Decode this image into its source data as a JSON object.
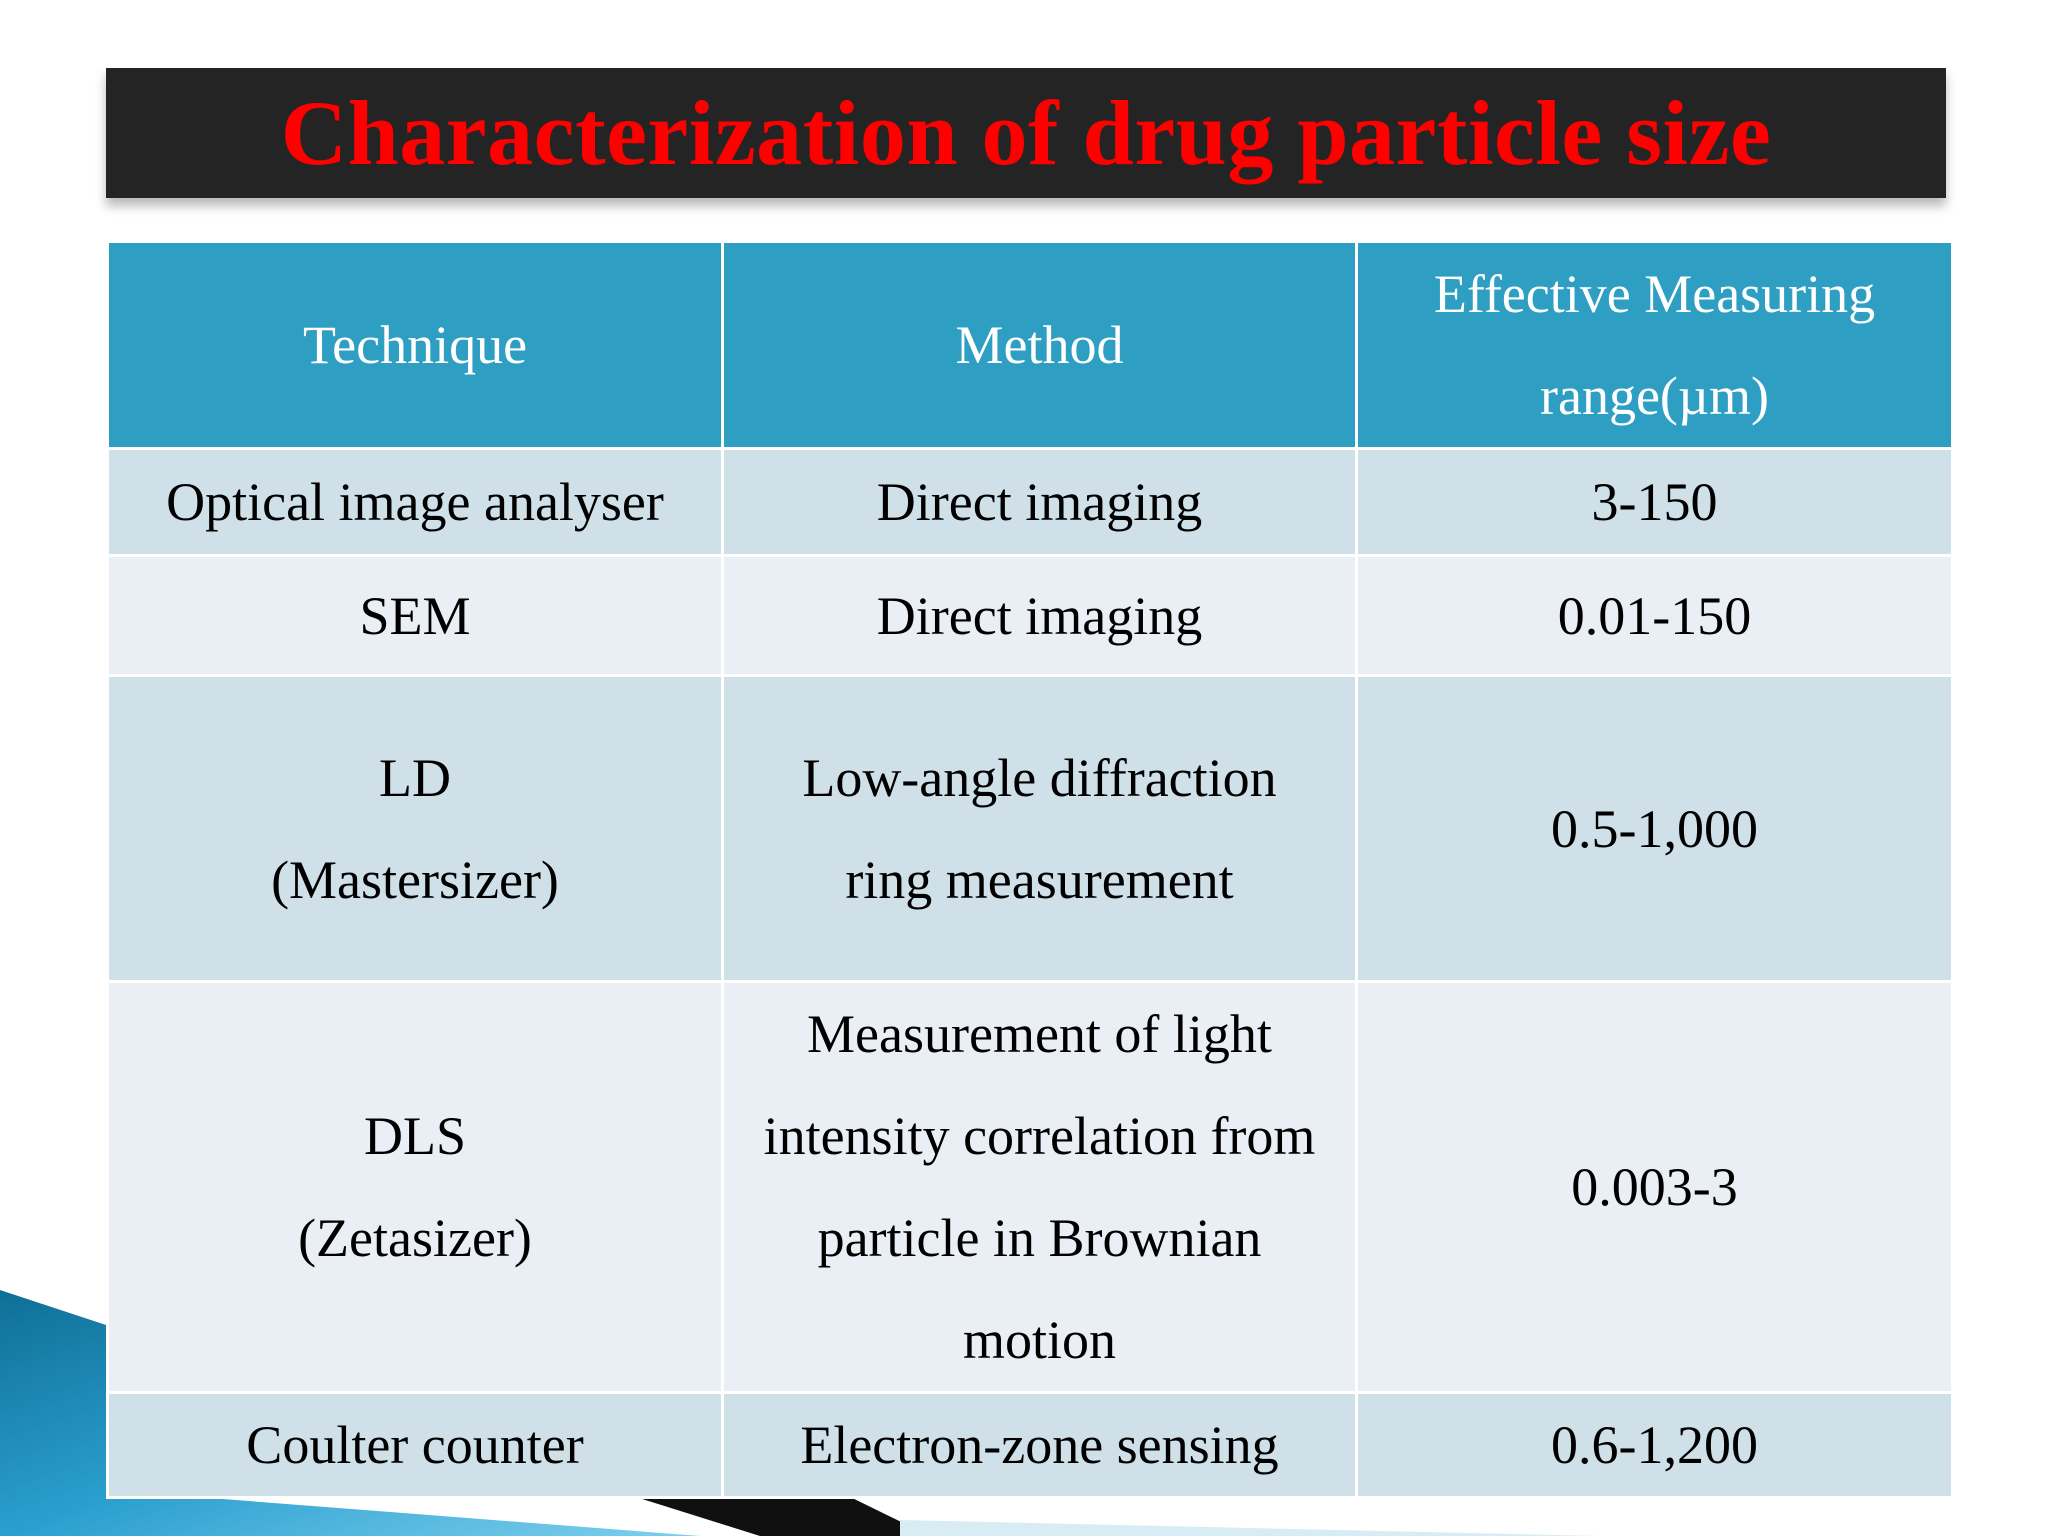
{
  "title": "Characterization of drug particle size",
  "table": {
    "headers": [
      "Technique",
      "Method",
      "Effective Measuring range(µm)"
    ],
    "rows": [
      {
        "technique": "Optical image analyser",
        "method": "Direct imaging",
        "range": "3-150"
      },
      {
        "technique": "SEM",
        "method": "Direct imaging",
        "range": "0.01-150"
      },
      {
        "technique_name": "LD",
        "technique_sub": "(Mastersizer)",
        "method_line1": "Low-angle diffraction",
        "method_line2": "ring measurement",
        "range": "0.5-1,000"
      },
      {
        "technique_name": "DLS",
        "technique_sub": "(Zetasizer)",
        "method_line1": "Measurement of light",
        "method_line2": "intensity correlation from",
        "method_line3": "particle in Brownian",
        "method_line4": "motion",
        "range": "0.003-3"
      },
      {
        "technique": "Coulter counter",
        "method": "Electron-zone sensing",
        "range": "0.6-1,200"
      }
    ]
  },
  "colors": {
    "title_bar": "#242424",
    "title_text": "#ff0000",
    "header_bg": "#2e9fc3",
    "row_dark": "#cfe0e8",
    "row_light": "#e9eff5",
    "accent_blue": "#1f8fbf"
  }
}
